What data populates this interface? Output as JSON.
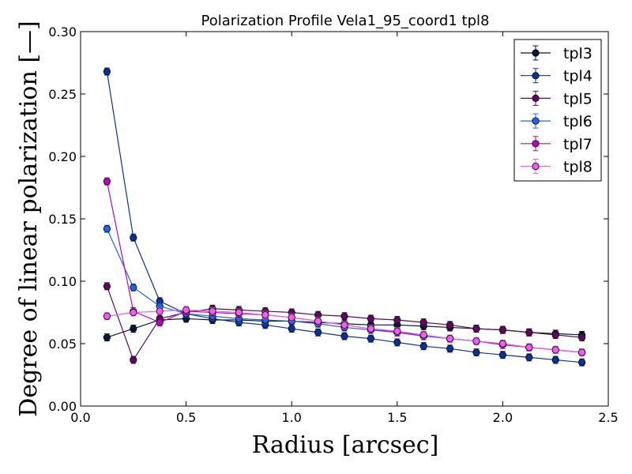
{
  "chart_data": {
    "type": "line",
    "title": "Polarization Profile Vela1_95_coord1 tpl8",
    "xlabel": "Radius [arcsec]",
    "ylabel": "Degree of linear polarization [—]",
    "xlim": [
      0.0,
      2.5
    ],
    "ylim": [
      0.0,
      0.3
    ],
    "xticks": [
      "0.0",
      "0.5",
      "1.0",
      "1.5",
      "2.0",
      "2.5"
    ],
    "yticks": [
      "0.00",
      "0.05",
      "0.10",
      "0.15",
      "0.20",
      "0.25",
      "0.30"
    ],
    "grid": false,
    "legend_position": "top-right",
    "x": [
      0.125,
      0.25,
      0.375,
      0.5,
      0.625,
      0.75,
      0.875,
      1.0,
      1.125,
      1.25,
      1.375,
      1.5,
      1.625,
      1.75,
      1.875,
      2.0,
      2.125,
      2.25,
      2.375
    ],
    "series": [
      {
        "name": "tpl3",
        "color": "#0a1736",
        "values": [
          0.055,
          0.062,
          0.069,
          0.07,
          0.069,
          0.069,
          0.068,
          0.068,
          0.067,
          0.066,
          0.065,
          0.065,
          0.064,
          0.063,
          0.062,
          0.061,
          0.059,
          0.058,
          0.057
        ]
      },
      {
        "name": "tpl4",
        "color": "#0c3190",
        "values": [
          0.268,
          0.135,
          0.084,
          0.074,
          0.07,
          0.067,
          0.065,
          0.062,
          0.059,
          0.056,
          0.054,
          0.051,
          0.048,
          0.046,
          0.043,
          0.041,
          0.039,
          0.037,
          0.035
        ]
      },
      {
        "name": "tpl5",
        "color": "#5e0a5e",
        "values": [
          0.096,
          0.037,
          0.07,
          0.075,
          0.078,
          0.077,
          0.076,
          0.075,
          0.073,
          0.072,
          0.07,
          0.069,
          0.067,
          0.065,
          0.062,
          0.061,
          0.059,
          0.057,
          0.055
        ]
      },
      {
        "name": "tpl6",
        "color": "#2464e0",
        "values": [
          0.142,
          0.095,
          0.08,
          0.074,
          0.072,
          0.07,
          0.069,
          0.068,
          0.066,
          0.063,
          0.061,
          0.059,
          0.056,
          0.054,
          0.052,
          0.05,
          0.047,
          0.045,
          0.043
        ]
      },
      {
        "name": "tpl7",
        "color": "#b40ab4",
        "values": [
          0.18,
          0.076,
          0.067,
          0.076,
          0.075,
          0.074,
          0.073,
          0.071,
          0.068,
          0.065,
          0.062,
          0.059,
          0.057,
          0.054,
          0.052,
          0.049,
          0.047,
          0.045,
          0.043
        ]
      },
      {
        "name": "tpl8",
        "color": "#f05ef0",
        "values": [
          0.072,
          0.075,
          0.076,
          0.077,
          0.076,
          0.075,
          0.073,
          0.071,
          0.068,
          0.065,
          0.062,
          0.06,
          0.057,
          0.054,
          0.052,
          0.05,
          0.047,
          0.045,
          0.043
        ]
      }
    ]
  }
}
